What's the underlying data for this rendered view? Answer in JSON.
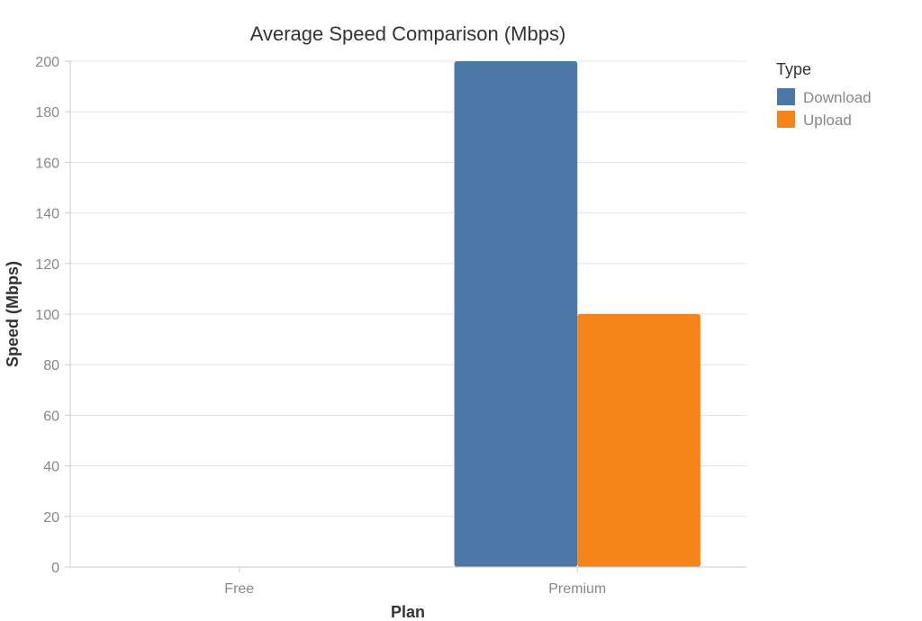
{
  "chart_data": {
    "type": "bar",
    "title": "Average Speed Comparison (Mbps)",
    "xlabel": "Plan",
    "ylabel": "Speed (Mbps)",
    "categories": [
      "Free",
      "Premium"
    ],
    "series": [
      {
        "name": "Download",
        "values": [
          0,
          200
        ],
        "color": "#4c78a8"
      },
      {
        "name": "Upload",
        "values": [
          0,
          100
        ],
        "color": "#f58518"
      }
    ],
    "ylim": [
      0,
      200
    ],
    "yticks": [
      "0",
      "20",
      "40",
      "60",
      "80",
      "100",
      "120",
      "140",
      "160",
      "180",
      "200"
    ],
    "grid": true,
    "legend": {
      "title": "Type",
      "placement": "top-right"
    }
  }
}
